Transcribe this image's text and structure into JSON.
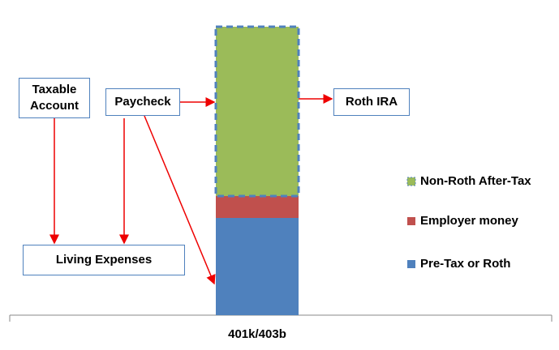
{
  "chart_data": {
    "type": "stacked_bar",
    "categories": [
      "401k/403b"
    ],
    "series": [
      {
        "name": "Pre-Tax or Roth",
        "color": "#4f81bd",
        "values": [
          120
        ]
      },
      {
        "name": "Employer money",
        "color": "#c0504d",
        "values": [
          27
        ]
      },
      {
        "name": "Non-Roth After-Tax",
        "color": "#9bbb59",
        "values": [
          209
        ]
      }
    ],
    "annotations": [
      "Taxable Account",
      "Paycheck",
      "Roth IRA",
      "Living Expenses"
    ]
  }
}
